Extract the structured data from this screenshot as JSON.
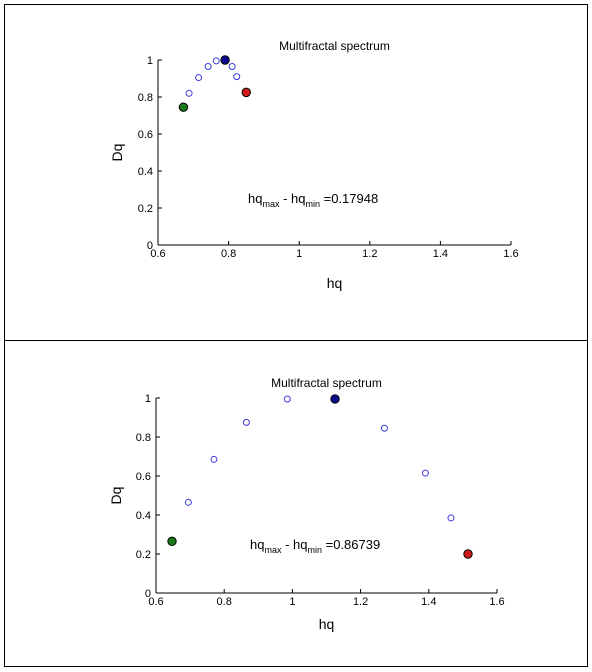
{
  "chart_data": [
    {
      "type": "scatter",
      "title": "Multifractal spectrum",
      "xlabel": "hq",
      "ylabel": "Dq",
      "xlim": [
        0.6,
        1.6
      ],
      "ylim": [
        0,
        1
      ],
      "xticks": [
        "0.6",
        "0.8",
        "1",
        "1.2",
        "1.4",
        "1.6"
      ],
      "yticks": [
        "0",
        "0.2",
        "0.4",
        "0.6",
        "0.8",
        "1"
      ],
      "annotation": {
        "base": "hq",
        "sub_max": "max",
        "mid": " - hq",
        "sub_min": "min",
        "value": " =0.17948"
      },
      "points": [
        {
          "x": 0.688,
          "y": 0.82
        },
        {
          "x": 0.715,
          "y": 0.905
        },
        {
          "x": 0.742,
          "y": 0.965
        },
        {
          "x": 0.765,
          "y": 0.995
        },
        {
          "x": 0.81,
          "y": 0.965
        },
        {
          "x": 0.823,
          "y": 0.91
        }
      ],
      "highlights": [
        {
          "x": 0.672,
          "y": 0.745,
          "color": "#1a7a1a"
        },
        {
          "x": 0.79,
          "y": 1.0,
          "color": "#0a0a8c"
        },
        {
          "x": 0.85,
          "y": 0.825,
          "color": "#d01a1a"
        }
      ],
      "marker_color": "#3a3ae0"
    },
    {
      "type": "scatter",
      "title": "Multifractal spectrum",
      "xlabel": "hq",
      "ylabel": "Dq",
      "xlim": [
        0.6,
        1.6
      ],
      "ylim": [
        0,
        1
      ],
      "xticks": [
        "0.6",
        "0.8",
        "1",
        "1.2",
        "1.4",
        "1.6"
      ],
      "yticks": [
        "0",
        "0.2",
        "0.4",
        "0.6",
        "0.8",
        "1"
      ],
      "annotation": {
        "base": "hq",
        "sub_max": "max",
        "mid": " - hq",
        "sub_min": "min",
        "value": " =0.86739"
      },
      "points": [
        {
          "x": 0.695,
          "y": 0.465
        },
        {
          "x": 0.77,
          "y": 0.685
        },
        {
          "x": 0.865,
          "y": 0.875
        },
        {
          "x": 0.985,
          "y": 0.995
        },
        {
          "x": 1.27,
          "y": 0.845
        },
        {
          "x": 1.39,
          "y": 0.615
        },
        {
          "x": 1.465,
          "y": 0.385
        }
      ],
      "highlights": [
        {
          "x": 0.647,
          "y": 0.265,
          "color": "#1a7a1a"
        },
        {
          "x": 1.125,
          "y": 0.995,
          "color": "#0a0a8c"
        },
        {
          "x": 1.515,
          "y": 0.2,
          "color": "#d01a1a"
        }
      ],
      "marker_color": "#3a3ae0"
    }
  ]
}
